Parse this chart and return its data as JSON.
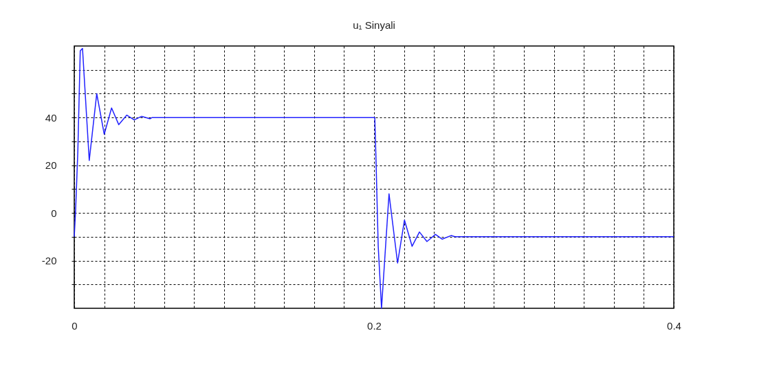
{
  "chart_data": {
    "type": "line",
    "title": "u₁ Sinyali",
    "x": [
      0,
      0.0009,
      0.0024,
      0.004,
      0.0055,
      0.01,
      0.015,
      0.02,
      0.0249,
      0.0297,
      0.035,
      0.04,
      0.045,
      0.0506,
      0.052,
      0.2,
      0.2005,
      0.2012,
      0.2028,
      0.205,
      0.21,
      0.2157,
      0.2203,
      0.2254,
      0.2303,
      0.2353,
      0.241,
      0.2455,
      0.2514,
      0.254,
      0.4
    ],
    "series": [
      {
        "color": "#2020ff",
        "values": [
          -10,
          1,
          26,
          68,
          69,
          22,
          50,
          33,
          44,
          37,
          41,
          39,
          40.5,
          39.5,
          40,
          40,
          40,
          25,
          -14,
          -40,
          8,
          -21,
          -3,
          -14,
          -8,
          -12,
          -9,
          -11,
          -9.5,
          -10,
          -10
        ]
      }
    ],
    "xlim": [
      0,
      0.4
    ],
    "xticks": [
      0,
      {
        "value": 0.02,
        "label": null
      },
      {
        "value": 0.04,
        "label": null
      },
      {
        "value": 0.06,
        "label": null
      },
      {
        "value": 0.08,
        "label": null
      },
      {
        "value": 0.1,
        "label": null
      },
      {
        "value": 0.12,
        "label": null
      },
      {
        "value": 0.14,
        "label": null
      },
      {
        "value": 0.16,
        "label": null
      },
      {
        "value": 0.18,
        "label": null
      },
      0.2,
      {
        "value": 0.22,
        "label": null
      },
      {
        "value": 0.24,
        "label": null
      },
      {
        "value": 0.26,
        "label": null
      },
      {
        "value": 0.28,
        "label": null
      },
      {
        "value": 0.3,
        "label": null
      },
      {
        "value": 0.32,
        "label": null
      },
      {
        "value": 0.34,
        "label": null
      },
      {
        "value": 0.36,
        "label": null
      },
      {
        "value": 0.38,
        "label": null
      },
      0.4
    ],
    "ylim": [
      -40,
      70
    ],
    "yticks": [
      {
        "value": -30,
        "label": null
      },
      -20,
      {
        "value": -10,
        "label": null
      },
      0,
      {
        "value": 10,
        "label": null
      },
      20,
      {
        "value": 30,
        "label": null
      },
      40,
      {
        "value": 50,
        "label": null
      },
      {
        "value": 60,
        "label": null
      }
    ],
    "grid": true,
    "line_style": "solid",
    "marker": "none"
  }
}
